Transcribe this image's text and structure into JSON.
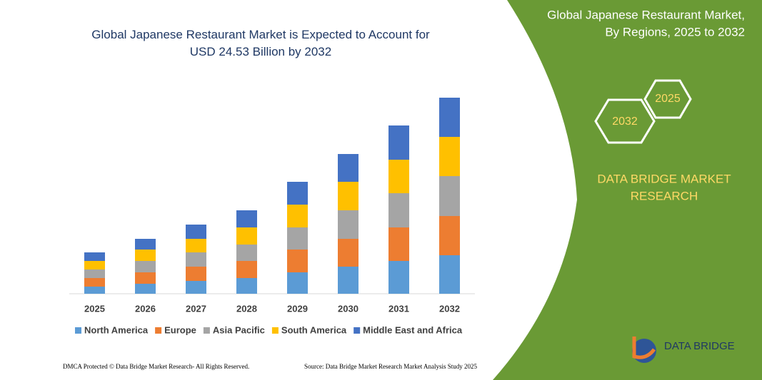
{
  "chart_data": {
    "type": "stacked-bar",
    "title": "Global Japanese Restaurant Market is Expected to Account for USD 24.53 Billion by 2032",
    "categories": [
      "2025",
      "2026",
      "2027",
      "2028",
      "2029",
      "2030",
      "2031",
      "2032"
    ],
    "series": [
      {
        "name": "North America",
        "color": "#5b9bd5",
        "values": [
          10,
          14,
          18,
          22,
          30,
          38,
          46,
          54
        ]
      },
      {
        "name": "Europe",
        "color": "#ed7d31",
        "values": [
          12,
          16,
          20,
          24,
          32,
          39,
          47,
          55
        ]
      },
      {
        "name": "Asia Pacific",
        "color": "#a5a5a5",
        "values": [
          12,
          16,
          20,
          23,
          31,
          40,
          48,
          56
        ]
      },
      {
        "name": "South America",
        "color": "#ffc000",
        "values": [
          12,
          16,
          19,
          24,
          32,
          40,
          47,
          55
        ]
      },
      {
        "name": "Middle East and Africa",
        "color": "#4472c4",
        "values": [
          12,
          15,
          20,
          24,
          32,
          39,
          48,
          55
        ]
      }
    ]
  },
  "panel": {
    "title_line1": "Global Japanese Restaurant Market,",
    "title_line2": "By Regions, 2025 to 2032",
    "hex_start": "2025",
    "hex_end": "2032",
    "brand_line1": "DATA BRIDGE MARKET",
    "brand_line2": "RESEARCH",
    "logo": "DATA BRIDGE"
  },
  "footer": {
    "left": "DMCA Protected © Data Bridge Market Research- All Rights Reserved.",
    "right": "Source: Data Bridge Market Research Market Analysis Study 2025"
  }
}
